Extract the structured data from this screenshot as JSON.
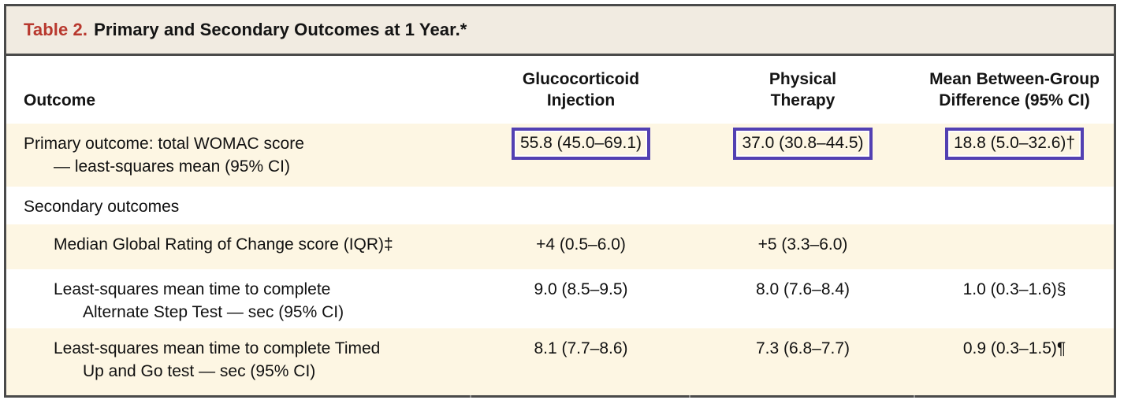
{
  "table": {
    "title_label": "Table 2.",
    "title_text": "Primary and Secondary Outcomes at 1 Year.*",
    "columns": {
      "outcome": "Outcome",
      "glucocorticoid": "Glucocorticoid\nInjection",
      "physical_therapy": "Physical\nTherapy",
      "difference": "Mean Between-Group\nDifference (95% CI)"
    },
    "rows": [
      {
        "line1": "Primary outcome: total WOMAC score",
        "line2": "— least-squares mean (95% CI)",
        "glucocorticoid": "55.8 (45.0–69.1)",
        "physical_therapy": "37.0 (30.8–44.5)",
        "difference": "18.8 (5.0–32.6)†",
        "highlighted": true
      },
      {
        "line1": "Secondary outcomes",
        "glucocorticoid": "",
        "physical_therapy": "",
        "difference": ""
      },
      {
        "line1": "Median Global Rating of Change score (IQR)‡",
        "glucocorticoid": "+4 (0.5–6.0)",
        "physical_therapy": "+5 (3.3–6.0)",
        "difference": ""
      },
      {
        "line1": "Least-squares mean time to complete",
        "line2": "Alternate Step Test — sec (95% CI)",
        "glucocorticoid": "9.0 (8.5–9.5)",
        "physical_therapy": "8.0 (7.6–8.4)",
        "difference": "1.0 (0.3–1.6)§"
      },
      {
        "line1": "Least-squares mean time to complete Timed",
        "line2": "Up and Go test — sec (95% CI)",
        "glucocorticoid": "8.1 (7.7–8.6)",
        "physical_therapy": "7.3 (6.8–7.7)",
        "difference": "0.9 (0.3–1.5)¶"
      }
    ],
    "colors": {
      "accent_red": "#b8382e",
      "row_cream": "#fdf6e3",
      "titlebar_cream": "#f1ebe1",
      "border_dark": "#4a4a4a",
      "highlight_box_purple": "#5240b2"
    }
  }
}
